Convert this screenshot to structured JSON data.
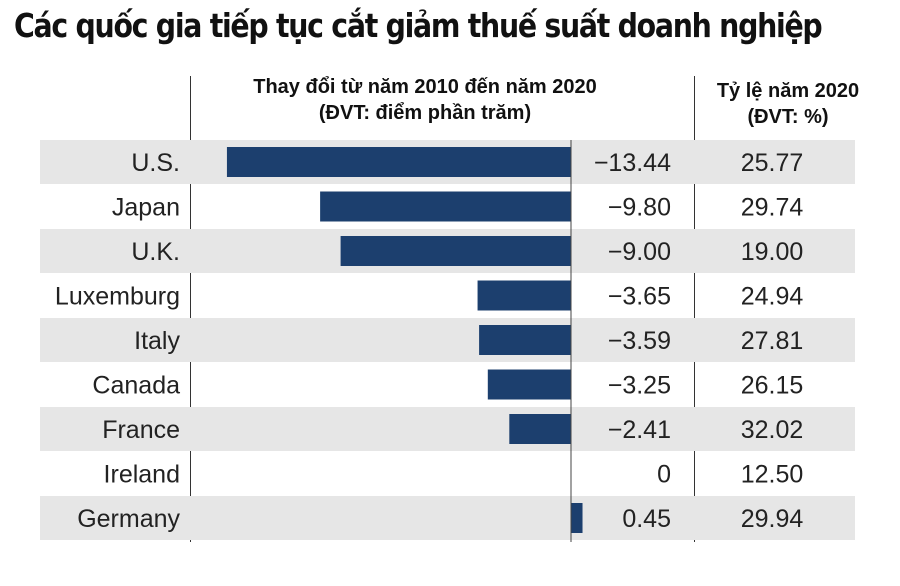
{
  "title": "Các quốc gia tiếp tục cắt giảm thuế suất doanh nghiệp",
  "header": {
    "change_line1": "Thay đổi từ năm 2010 đến năm 2020",
    "change_line2": "(ĐVT: điểm phần trăm)",
    "rate_line1": "Tỷ lệ năm 2020",
    "rate_line2": "(ĐVT: %)"
  },
  "colors": {
    "bar": "#1c3f6e",
    "stripe": "#e6e6e6"
  },
  "chart_data": {
    "type": "bar",
    "orientation": "horizontal",
    "categories": [
      "U.S.",
      "Japan",
      "U.K.",
      "Luxemburg",
      "Italy",
      "Canada",
      "France",
      "Ireland",
      "Germany"
    ],
    "series": [
      {
        "name": "Thay đổi từ năm 2010 đến năm 2020",
        "values": [
          -13.44,
          -9.8,
          -9.0,
          -3.65,
          -3.59,
          -3.25,
          -2.41,
          0,
          0.45
        ]
      }
    ],
    "value_labels": [
      "−13.44",
      "−9.80",
      "−9.00",
      "−3.65",
      "−3.59",
      "−3.25",
      "−2.41",
      "0",
      "0.45"
    ],
    "rate_2020": [
      "25.77",
      "29.74",
      "19.00",
      "24.94",
      "27.81",
      "26.15",
      "32.02",
      "12.50",
      "29.94"
    ],
    "xlim": [
      -14,
      1
    ],
    "grid": false,
    "legend": "none"
  }
}
